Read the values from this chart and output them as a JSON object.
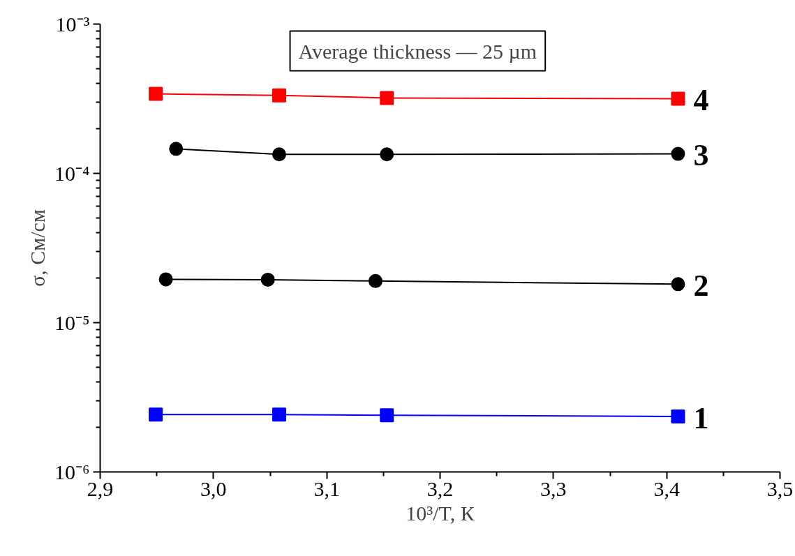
{
  "chart_data": {
    "type": "line",
    "xlabel": "10³/T, К",
    "ylabel": "σ, См/см",
    "log": "y",
    "xlim": [
      2.9,
      3.5
    ],
    "xticks": [
      {
        "value": 2.9,
        "label": "2,9"
      },
      {
        "value": 3.0,
        "label": "3,0"
      },
      {
        "value": 3.1,
        "label": "3,1"
      },
      {
        "value": 3.2,
        "label": "3,2"
      },
      {
        "value": 3.3,
        "label": "3,3"
      },
      {
        "value": 3.4,
        "label": "3,4"
      },
      {
        "value": 3.5,
        "label": "3,5"
      }
    ],
    "ylim": [
      1e-06,
      0.001
    ],
    "yticks": [
      {
        "value": 1e-06,
        "label": "10⁻⁶"
      },
      {
        "value": 1e-05,
        "label": "10⁻⁵"
      },
      {
        "value": 0.0001,
        "label": "10⁻⁴"
      },
      {
        "value": 0.001,
        "label": "10⁻³"
      }
    ],
    "grid": false,
    "line_style": "solid",
    "annotations": [
      "Average thickness — 25 µm"
    ],
    "series": [
      {
        "name": "4",
        "color": "#ff0000",
        "marker": "square",
        "x": [
          2.949,
          3.058,
          3.153,
          3.41
        ],
        "values": [
          0.000341,
          0.000333,
          0.00032,
          0.000316
        ]
      },
      {
        "name": "3",
        "color": "#000000",
        "marker": "circle",
        "x": [
          2.967,
          3.058,
          3.153,
          3.41
        ],
        "values": [
          0.000146,
          0.000134,
          0.000134,
          0.000135
        ]
      },
      {
        "name": "2",
        "color": "#000000",
        "marker": "circle",
        "x": [
          2.958,
          3.048,
          3.143,
          3.41
        ],
        "values": [
          1.95e-05,
          1.94e-05,
          1.9e-05,
          1.81e-05
        ]
      },
      {
        "name": "1",
        "color": "#0000ff",
        "marker": "square",
        "x": [
          2.949,
          3.058,
          3.153,
          3.41
        ],
        "values": [
          2.42e-06,
          2.42e-06,
          2.4e-06,
          2.35e-06
        ]
      }
    ]
  }
}
